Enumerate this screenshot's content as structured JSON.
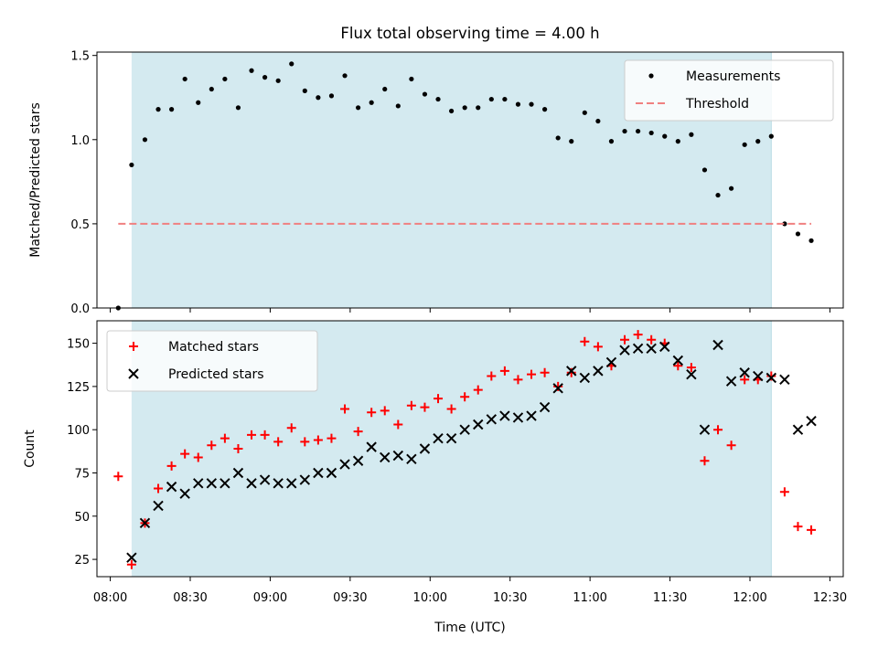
{
  "figure": {
    "title": "Flux total observing time = 4.00 h"
  },
  "chart_data": [
    {
      "type": "scatter",
      "title": "Flux total observing time = 4.00 h",
      "xlabel": "",
      "ylabel": "Matched/Predicted stars",
      "xlim": [
        "07:55",
        "12:35"
      ],
      "ylim": [
        0,
        1.52
      ],
      "yticks": [
        0.0,
        0.5,
        1.0,
        1.5
      ],
      "ytick_labels": [
        "0.0",
        "0.5",
        "1.0",
        "1.5"
      ],
      "shaded_interval": {
        "start": "08:08",
        "end": "12:08",
        "color": "#d4eaf0"
      },
      "legend_position": "upper right",
      "series": [
        {
          "name": "Measurements",
          "marker": "dot",
          "color": "#000000",
          "x": [
            "08:03",
            "08:08",
            "08:13",
            "08:18",
            "08:23",
            "08:28",
            "08:33",
            "08:38",
            "08:43",
            "08:48",
            "08:53",
            "08:58",
            "09:03",
            "09:08",
            "09:13",
            "09:18",
            "09:23",
            "09:28",
            "09:33",
            "09:38",
            "09:43",
            "09:48",
            "09:53",
            "09:58",
            "10:03",
            "10:08",
            "10:13",
            "10:18",
            "10:23",
            "10:28",
            "10:33",
            "10:38",
            "10:43",
            "10:48",
            "10:53",
            "10:58",
            "11:03",
            "11:08",
            "11:13",
            "11:18",
            "11:23",
            "11:28",
            "11:33",
            "11:38",
            "11:43",
            "11:48",
            "11:53",
            "11:58",
            "12:03",
            "12:08",
            "12:13",
            "12:18",
            "12:23"
          ],
          "y": [
            0.0,
            0.85,
            1.0,
            1.18,
            1.18,
            1.36,
            1.22,
            1.3,
            1.36,
            1.19,
            1.41,
            1.37,
            1.35,
            1.45,
            1.29,
            1.25,
            1.26,
            1.38,
            1.19,
            1.22,
            1.3,
            1.2,
            1.36,
            1.27,
            1.24,
            1.17,
            1.19,
            1.19,
            1.24,
            1.24,
            1.21,
            1.21,
            1.18,
            1.01,
            0.99,
            1.16,
            1.11,
            0.99,
            1.05,
            1.05,
            1.04,
            1.02,
            0.99,
            1.03,
            0.82,
            0.67,
            0.71,
            0.97,
            0.99,
            1.02,
            0.5,
            0.44,
            0.4
          ]
        },
        {
          "name": "Threshold",
          "style": "dashed",
          "color": "#f08080",
          "x": [
            "08:03",
            "12:23"
          ],
          "y": [
            0.5,
            0.5
          ]
        }
      ]
    },
    {
      "type": "scatter",
      "title": "",
      "xlabel": "Time (UTC)",
      "ylabel": "Count",
      "xlim": [
        "07:55",
        "12:35"
      ],
      "ylim": [
        15,
        163
      ],
      "yticks": [
        25,
        50,
        75,
        100,
        125,
        150
      ],
      "ytick_labels": [
        "25",
        "50",
        "75",
        "100",
        "125",
        "150"
      ],
      "xticks": [
        "08:00",
        "08:30",
        "09:00",
        "09:30",
        "10:00",
        "10:30",
        "11:00",
        "11:30",
        "12:00",
        "12:30"
      ],
      "xtick_labels": [
        "08:00",
        "08:30",
        "09:00",
        "09:30",
        "10:00",
        "10:30",
        "11:00",
        "11:30",
        "12:00",
        "12:30"
      ],
      "shaded_interval": {
        "start": "08:08",
        "end": "12:08",
        "color": "#d4eaf0"
      },
      "legend_position": "upper left",
      "series": [
        {
          "name": "Matched stars",
          "marker": "plus",
          "color": "#ff0000",
          "x": [
            "08:03",
            "08:08",
            "08:13",
            "08:18",
            "08:23",
            "08:28",
            "08:33",
            "08:38",
            "08:43",
            "08:48",
            "08:53",
            "08:58",
            "09:03",
            "09:08",
            "09:13",
            "09:18",
            "09:23",
            "09:28",
            "09:33",
            "09:38",
            "09:43",
            "09:48",
            "09:53",
            "09:58",
            "10:03",
            "10:08",
            "10:13",
            "10:18",
            "10:23",
            "10:28",
            "10:33",
            "10:38",
            "10:43",
            "10:48",
            "10:53",
            "10:58",
            "11:03",
            "11:08",
            "11:13",
            "11:18",
            "11:23",
            "11:28",
            "11:33",
            "11:38",
            "11:43",
            "11:48",
            "11:53",
            "11:58",
            "12:03",
            "12:08",
            "12:13",
            "12:18",
            "12:23"
          ],
          "y": [
            73,
            22,
            46,
            66,
            79,
            86,
            84,
            91,
            95,
            89,
            97,
            97,
            93,
            101,
            93,
            94,
            95,
            112,
            99,
            110,
            111,
            103,
            114,
            113,
            118,
            112,
            119,
            123,
            131,
            134,
            129,
            132,
            133,
            125,
            133,
            151,
            148,
            137,
            152,
            155,
            152,
            150,
            137,
            136,
            82,
            100,
            91,
            129,
            129,
            131,
            64,
            44,
            42
          ]
        },
        {
          "name": "Predicted stars",
          "marker": "x",
          "color": "#000000",
          "x": [
            "08:08",
            "08:13",
            "08:18",
            "08:23",
            "08:28",
            "08:33",
            "08:38",
            "08:43",
            "08:48",
            "08:53",
            "08:58",
            "09:03",
            "09:08",
            "09:13",
            "09:18",
            "09:23",
            "09:28",
            "09:33",
            "09:38",
            "09:43",
            "09:48",
            "09:53",
            "09:58",
            "10:03",
            "10:08",
            "10:13",
            "10:18",
            "10:23",
            "10:28",
            "10:33",
            "10:38",
            "10:43",
            "10:48",
            "10:53",
            "10:58",
            "11:03",
            "11:08",
            "11:13",
            "11:18",
            "11:23",
            "11:28",
            "11:33",
            "11:38",
            "11:43",
            "11:48",
            "11:53",
            "11:58",
            "12:03",
            "12:08",
            "12:13",
            "12:18",
            "12:23"
          ],
          "y": [
            26,
            46,
            56,
            67,
            63,
            69,
            69,
            69,
            75,
            69,
            71,
            69,
            69,
            71,
            75,
            75,
            80,
            82,
            90,
            84,
            85,
            83,
            89,
            95,
            95,
            100,
            103,
            106,
            108,
            107,
            108,
            113,
            124,
            134,
            130,
            134,
            139,
            146,
            147,
            147,
            148,
            140,
            132,
            100,
            149,
            128,
            133,
            131,
            130,
            129,
            100,
            105
          ]
        }
      ]
    }
  ]
}
